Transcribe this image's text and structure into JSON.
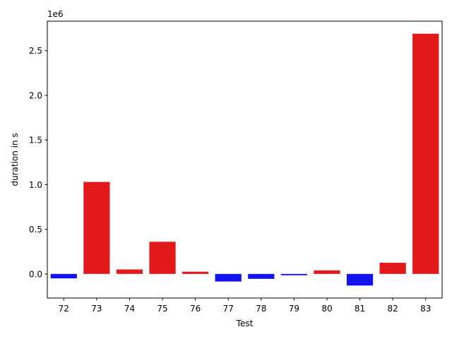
{
  "chart_data": {
    "type": "bar",
    "xlabel": "Test",
    "ylabel": "duration in s",
    "offset_label": "1e6",
    "categories": [
      "72",
      "73",
      "74",
      "75",
      "76",
      "77",
      "78",
      "79",
      "80",
      "81",
      "82",
      "83"
    ],
    "values": [
      -50000,
      1030000,
      50000,
      360000,
      25000,
      -85000,
      -55000,
      -15000,
      40000,
      -130000,
      125000,
      2690000
    ],
    "bar_colors": [
      "#1414ec",
      "#e31a1c",
      "#e31a1c",
      "#e31a1c",
      "#e31a1c",
      "#1414ec",
      "#1414ec",
      "#1414ec",
      "#e31a1c",
      "#1414ec",
      "#e31a1c",
      "#e31a1c"
    ],
    "ylim": [
      -270000,
      2830000
    ],
    "yticks": [
      0,
      500000,
      1000000,
      1500000,
      2000000,
      2500000
    ],
    "ytick_labels": [
      "0.0",
      "0.5",
      "1.0",
      "1.5",
      "2.0",
      "2.5"
    ],
    "grid": false
  }
}
